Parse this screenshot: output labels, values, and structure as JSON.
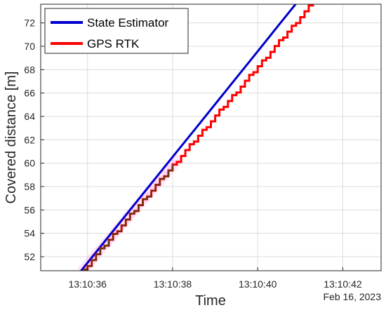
{
  "chart_data": {
    "type": "line",
    "title": "",
    "xlabel": "Time",
    "ylabel": "Covered distance [m]",
    "date_label": "Feb 16, 2023",
    "xlim": [
      34.9,
      42.9
    ],
    "ylim": [
      50.8,
      73.6
    ],
    "x_ticks": [
      {
        "value": 36,
        "label": "13:10:36"
      },
      {
        "value": 38,
        "label": "13:10:38"
      },
      {
        "value": 40,
        "label": "13:10:40"
      },
      {
        "value": 42,
        "label": "13:10:42"
      }
    ],
    "y_ticks": [
      52,
      54,
      56,
      58,
      60,
      62,
      64,
      66,
      68,
      70,
      72
    ],
    "grid": true,
    "legend_position": "top-left",
    "series": [
      {
        "name": "State Estimator",
        "color": "#0000cc",
        "style": "line",
        "x": [
          35.85,
          36.5,
          37.0,
          37.5,
          38.0,
          38.5,
          39.0,
          39.5,
          40.0,
          40.5,
          41.2
        ],
        "y": [
          50.8,
          53.74,
          56.0,
          58.27,
          60.53,
          62.79,
          65.05,
          67.31,
          69.57,
          71.84,
          75.0
        ]
      },
      {
        "name": "GPS RTK",
        "color": "#ff0000",
        "style": "step",
        "step_dt": 0.1,
        "x_start": 35.9,
        "x_end": 41.3,
        "y_start": 50.9,
        "y_end": 73.8
      }
    ],
    "annotations": [
      {
        "type": "dark-overlay",
        "color": "#5a3a10",
        "x_range": [
          35.9,
          38.1
        ]
      },
      {
        "type": "pink-halo",
        "color": "#ff77dd",
        "x_range": [
          35.9,
          38.1
        ]
      }
    ]
  }
}
